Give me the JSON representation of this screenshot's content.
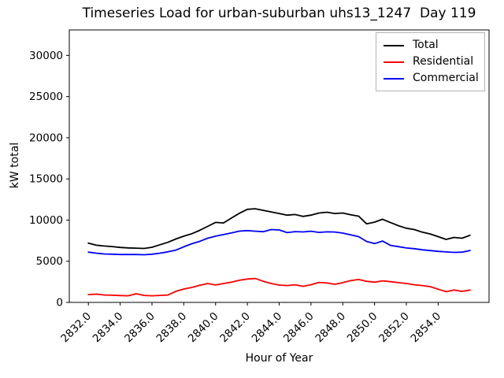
{
  "figure": {
    "background": "#ffffff"
  },
  "chart_data": {
    "type": "line",
    "title": "Timeseries Load for urban-suburban uhs13_1247  Day 119",
    "xlabel": "Hour of Year",
    "ylabel": "kW total",
    "xlim": [
      2830.8,
      2857.2
    ],
    "ylim": [
      0,
      33100
    ],
    "grid": false,
    "legend_position": "upper right",
    "x_tick_rotation": 45,
    "x_ticks": [
      {
        "value": 2832,
        "label": "2832.0"
      },
      {
        "value": 2834,
        "label": "2834.0"
      },
      {
        "value": 2836,
        "label": "2836.0"
      },
      {
        "value": 2838,
        "label": "2838.0"
      },
      {
        "value": 2840,
        "label": "2840.0"
      },
      {
        "value": 2842,
        "label": "2842.0"
      },
      {
        "value": 2844,
        "label": "2844.0"
      },
      {
        "value": 2846,
        "label": "2846.0"
      },
      {
        "value": 2848,
        "label": "2848.0"
      },
      {
        "value": 2850,
        "label": "2850.0"
      },
      {
        "value": 2852,
        "label": "2852.0"
      },
      {
        "value": 2854,
        "label": "2854.0"
      }
    ],
    "y_ticks": [
      {
        "value": 0,
        "label": "0"
      },
      {
        "value": 5000,
        "label": "5000"
      },
      {
        "value": 10000,
        "label": "10000"
      },
      {
        "value": 15000,
        "label": "15000"
      },
      {
        "value": 20000,
        "label": "20000"
      },
      {
        "value": 25000,
        "label": "25000"
      },
      {
        "value": 30000,
        "label": "30000"
      }
    ],
    "x_start": 2832.0,
    "x_step": 0.5,
    "series": [
      {
        "name": "Total",
        "color": "#000000",
        "values": [
          7200,
          6950,
          6850,
          6780,
          6680,
          6620,
          6590,
          6550,
          6700,
          7000,
          7300,
          7700,
          8050,
          8340,
          8755,
          9235,
          9715,
          9650,
          10250,
          10830,
          11310,
          11375,
          11185,
          10995,
          10800,
          10600,
          10680,
          10450,
          10600,
          10860,
          10950,
          10800,
          10860,
          10650,
          10480,
          9550,
          9750,
          10100,
          9700,
          9320,
          9010,
          8850,
          8530,
          8310,
          7985,
          7650,
          7890,
          7795,
          8150
        ]
      },
      {
        "name": "Residential",
        "color": "#ff0000",
        "values": [
          950,
          1000,
          900,
          870,
          830,
          800,
          1050,
          850,
          800,
          850,
          900,
          1350,
          1630,
          1820,
          2080,
          2300,
          2110,
          2300,
          2460,
          2685,
          2845,
          2900,
          2560,
          2300,
          2100,
          2050,
          2140,
          1950,
          2150,
          2430,
          2350,
          2200,
          2400,
          2650,
          2780,
          2560,
          2460,
          2620,
          2520,
          2400,
          2300,
          2140,
          2045,
          1915,
          1600,
          1300,
          1505,
          1340,
          1500
        ]
      },
      {
        "name": "Commercial",
        "color": "#0000ff",
        "values": [
          6100,
          5980,
          5880,
          5850,
          5820,
          5820,
          5820,
          5790,
          5850,
          5980,
          6140,
          6350,
          6750,
          7125,
          7410,
          7795,
          8050,
          8240,
          8435,
          8660,
          8720,
          8650,
          8595,
          8850,
          8800,
          8480,
          8600,
          8560,
          8650,
          8500,
          8570,
          8550,
          8420,
          8200,
          7990,
          7400,
          7150,
          7450,
          6930,
          6775,
          6615,
          6520,
          6390,
          6295,
          6200,
          6135,
          6070,
          6100,
          6300
        ]
      }
    ]
  }
}
